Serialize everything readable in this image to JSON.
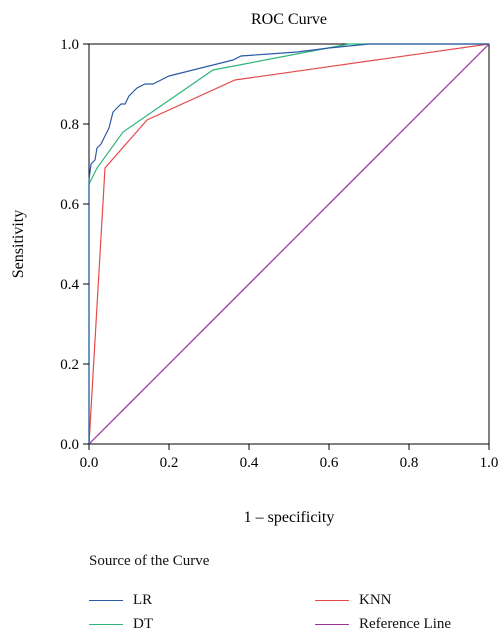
{
  "chart_data": {
    "type": "line",
    "title": "ROC Curve",
    "xlabel": "1 – specificity",
    "ylabel": "Sensitivity",
    "xlim": [
      0,
      1
    ],
    "ylim": [
      0,
      1
    ],
    "xticks": [
      "0.0",
      "0.2",
      "0.4",
      "0.6",
      "0.8",
      "1.0"
    ],
    "yticks": [
      "0.0",
      "0.2",
      "0.4",
      "0.6",
      "0.8",
      "1.0"
    ],
    "grid": false,
    "legend_position": "bottom",
    "legend_title": "Source of the Curve",
    "series": [
      {
        "name": "LR",
        "color": "#2c5aa8",
        "points": [
          [
            0,
            0
          ],
          [
            0,
            0.66
          ],
          [
            0.005,
            0.7
          ],
          [
            0.015,
            0.71
          ],
          [
            0.02,
            0.74
          ],
          [
            0.03,
            0.75
          ],
          [
            0.04,
            0.77
          ],
          [
            0.05,
            0.79
          ],
          [
            0.055,
            0.81
          ],
          [
            0.06,
            0.83
          ],
          [
            0.07,
            0.84
          ],
          [
            0.08,
            0.85
          ],
          [
            0.09,
            0.85
          ],
          [
            0.1,
            0.87
          ],
          [
            0.11,
            0.88
          ],
          [
            0.12,
            0.89
          ],
          [
            0.14,
            0.9
          ],
          [
            0.16,
            0.9
          ],
          [
            0.18,
            0.91
          ],
          [
            0.2,
            0.92
          ],
          [
            0.24,
            0.93
          ],
          [
            0.28,
            0.94
          ],
          [
            0.32,
            0.95
          ],
          [
            0.36,
            0.96
          ],
          [
            0.38,
            0.97
          ],
          [
            0.45,
            0.975
          ],
          [
            0.52,
            0.98
          ],
          [
            0.6,
            0.99
          ],
          [
            0.7,
            1.0
          ],
          [
            1.0,
            1.0
          ]
        ]
      },
      {
        "name": "DT",
        "color": "#2fb67a",
        "points": [
          [
            0,
            0
          ],
          [
            0,
            0.65
          ],
          [
            0.02,
            0.69
          ],
          [
            0.085,
            0.78
          ],
          [
            0.31,
            0.935
          ],
          [
            0.65,
            1.0
          ],
          [
            1.0,
            1.0
          ]
        ]
      },
      {
        "name": "KNN",
        "color": "#e34b4b",
        "points": [
          [
            0,
            0
          ],
          [
            0.04,
            0.69
          ],
          [
            0.145,
            0.81
          ],
          [
            0.365,
            0.91
          ],
          [
            1.0,
            1.0
          ]
        ]
      },
      {
        "name": "Reference Line",
        "color": "#9b2f9b",
        "points": [
          [
            0,
            0
          ],
          [
            1,
            1
          ]
        ]
      }
    ]
  }
}
